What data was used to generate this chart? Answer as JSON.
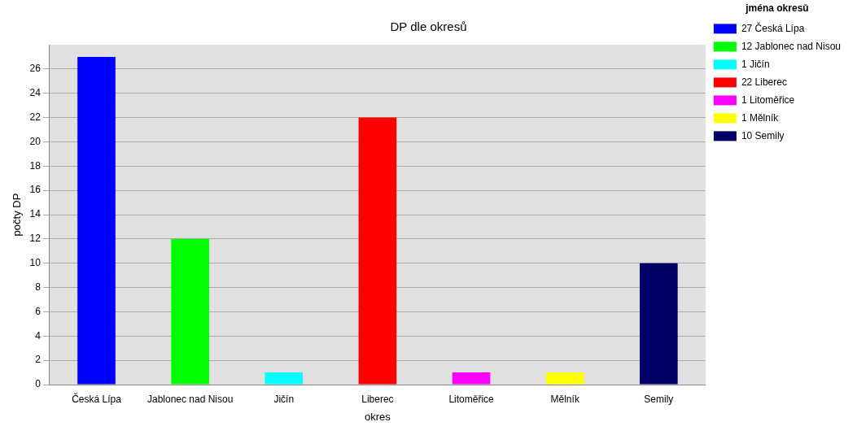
{
  "chart_data": {
    "type": "bar",
    "title": "DP dle okresů",
    "xlabel": "okres",
    "ylabel": "počty DP",
    "legend_title": "jména okresů",
    "categories": [
      "Česká Lípa",
      "Jablonec nad Nisou",
      "Jičín",
      "Liberec",
      "Litoměřice",
      "Mělník",
      "Semily"
    ],
    "series": [
      {
        "name": "27 Česká Lípa",
        "color": "#0000ff",
        "values": [
          27,
          null,
          null,
          null,
          null,
          null,
          null
        ]
      },
      {
        "name": "12 Jablonec nad Nisou",
        "color": "#00ff00",
        "values": [
          null,
          12,
          null,
          null,
          null,
          null,
          null
        ]
      },
      {
        "name": "1 Jičín",
        "color": "#00ffff",
        "values": [
          null,
          null,
          1,
          null,
          null,
          null,
          null
        ]
      },
      {
        "name": "22 Liberec",
        "color": "#ff0000",
        "values": [
          null,
          null,
          null,
          22,
          null,
          null,
          null
        ]
      },
      {
        "name": "1 Litoměřice",
        "color": "#ff00ff",
        "values": [
          null,
          null,
          null,
          null,
          1,
          null,
          null
        ]
      },
      {
        "name": "1 Mělník",
        "color": "#ffff00",
        "values": [
          null,
          null,
          null,
          null,
          null,
          1,
          null
        ]
      },
      {
        "name": "10 Semily",
        "color": "#000066",
        "values": [
          null,
          null,
          null,
          null,
          null,
          null,
          10
        ]
      }
    ],
    "ylim": [
      0,
      28
    ],
    "yticks": [
      0,
      2,
      4,
      6,
      8,
      10,
      12,
      14,
      16,
      18,
      20,
      22,
      24,
      26
    ],
    "grid": "y",
    "legend": "top right"
  }
}
